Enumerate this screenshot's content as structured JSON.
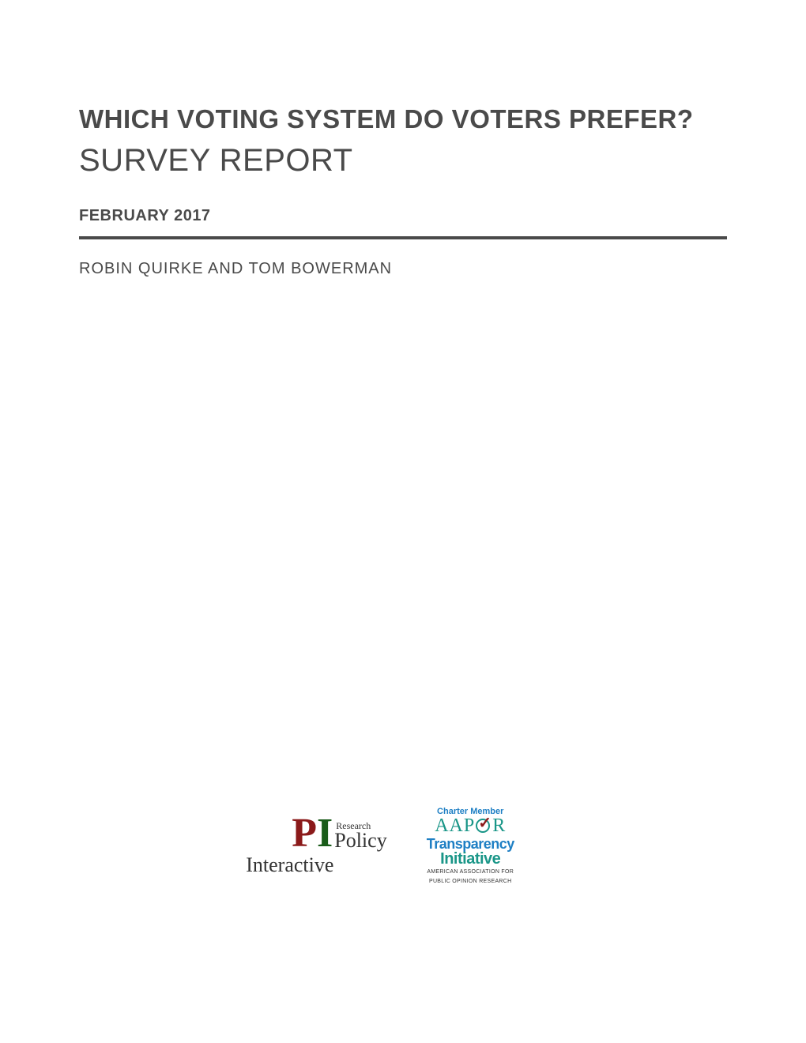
{
  "title": {
    "main": "WHICH VOTING SYSTEM DO VOTERS PREFER?",
    "sub": "SURVEY REPORT"
  },
  "date": "FEBRUARY 2017",
  "authors": "ROBIN QUIRKE AND TOM BOWERMAN",
  "colors": {
    "heading": "#4a4a4a",
    "divider": "#4a4a4a",
    "pi_red": "#8b1a1a",
    "pi_green": "#1a5c1a",
    "aapor_teal": "#1a9688",
    "aapor_blue": "#1e7fc4"
  },
  "logos": {
    "pi": {
      "p": "P",
      "i": "I",
      "research": "Research",
      "policy": "Policy",
      "interactive": "Interactive"
    },
    "aapor": {
      "charter": "Charter Member",
      "aap": "AAP",
      "r": "R",
      "transparency": "Transparency",
      "initiative": "Initiative",
      "subtitle1": "AMERICAN ASSOCIATION FOR",
      "subtitle2": "PUBLIC OPINION RESEARCH"
    }
  }
}
